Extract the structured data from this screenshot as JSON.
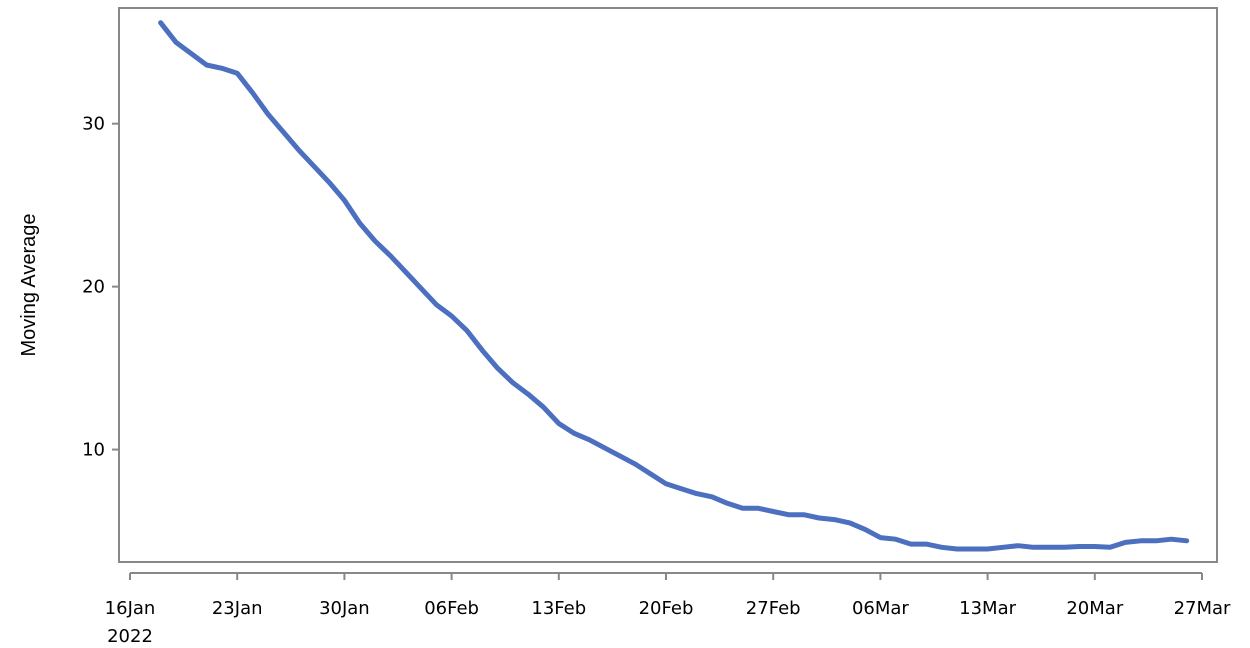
{
  "chart_data": {
    "type": "line",
    "title": "",
    "xlabel": "",
    "ylabel": "Moving Average",
    "x_tick_labels": [
      {
        "date": "2022-01-16",
        "label": "16Jan",
        "sublabel": "2022"
      },
      {
        "date": "2022-01-23",
        "label": "23Jan"
      },
      {
        "date": "2022-01-30",
        "label": "30Jan"
      },
      {
        "date": "2022-02-06",
        "label": "06Feb"
      },
      {
        "date": "2022-02-13",
        "label": "13Feb"
      },
      {
        "date": "2022-02-20",
        "label": "20Feb"
      },
      {
        "date": "2022-02-27",
        "label": "27Feb"
      },
      {
        "date": "2022-03-06",
        "label": "06Mar"
      },
      {
        "date": "2022-03-13",
        "label": "13Mar"
      },
      {
        "date": "2022-03-20",
        "label": "20Mar"
      },
      {
        "date": "2022-03-27",
        "label": "27Mar"
      }
    ],
    "y_ticks": [
      10,
      20,
      30
    ],
    "xlim": [
      "2022-01-16",
      "2022-03-27"
    ],
    "ylim": [
      3.1,
      37.1
    ],
    "grid": false,
    "line_color": "#4c6fbf",
    "series": [
      {
        "x": [
          "2022-01-18",
          "2022-01-19",
          "2022-01-20",
          "2022-01-21",
          "2022-01-22",
          "2022-01-23",
          "2022-01-24",
          "2022-01-25",
          "2022-01-26",
          "2022-01-27",
          "2022-01-28",
          "2022-01-29",
          "2022-01-30",
          "2022-01-31",
          "2022-02-01",
          "2022-02-02",
          "2022-02-03",
          "2022-02-04",
          "2022-02-05",
          "2022-02-06",
          "2022-02-07",
          "2022-02-08",
          "2022-02-09",
          "2022-02-10",
          "2022-02-11",
          "2022-02-12",
          "2022-02-13",
          "2022-02-14",
          "2022-02-15",
          "2022-02-16",
          "2022-02-17",
          "2022-02-18",
          "2022-02-19",
          "2022-02-20",
          "2022-02-21",
          "2022-02-22",
          "2022-02-23",
          "2022-02-24",
          "2022-02-25",
          "2022-02-26",
          "2022-02-27",
          "2022-02-28",
          "2022-03-01",
          "2022-03-02",
          "2022-03-03",
          "2022-03-04",
          "2022-03-05",
          "2022-03-06",
          "2022-03-07",
          "2022-03-08",
          "2022-03-09",
          "2022-03-10",
          "2022-03-11",
          "2022-03-12",
          "2022-03-13",
          "2022-03-14",
          "2022-03-15",
          "2022-03-16",
          "2022-03-17",
          "2022-03-18",
          "2022-03-19",
          "2022-03-20",
          "2022-03-21",
          "2022-03-22",
          "2022-03-23",
          "2022-03-24",
          "2022-03-25",
          "2022-03-26"
        ],
        "y": [
          36.2,
          35.0,
          34.3,
          33.6,
          33.4,
          33.1,
          31.9,
          30.6,
          29.5,
          28.4,
          27.4,
          26.4,
          25.3,
          23.9,
          22.8,
          21.9,
          20.9,
          19.9,
          18.9,
          18.2,
          17.3,
          16.1,
          15.0,
          14.1,
          13.4,
          12.6,
          11.6,
          11.0,
          10.6,
          10.1,
          9.6,
          9.1,
          8.5,
          7.9,
          7.6,
          7.3,
          7.1,
          6.7,
          6.4,
          6.4,
          6.2,
          6.0,
          6.0,
          5.8,
          5.7,
          5.5,
          5.1,
          4.6,
          4.5,
          4.2,
          4.2,
          4.0,
          3.9,
          3.9,
          3.9,
          4.0,
          4.1,
          4.0,
          4.0,
          4.0,
          4.05,
          4.05,
          4.0,
          4.3,
          4.4,
          4.4,
          4.5,
          4.4
        ]
      }
    ]
  }
}
